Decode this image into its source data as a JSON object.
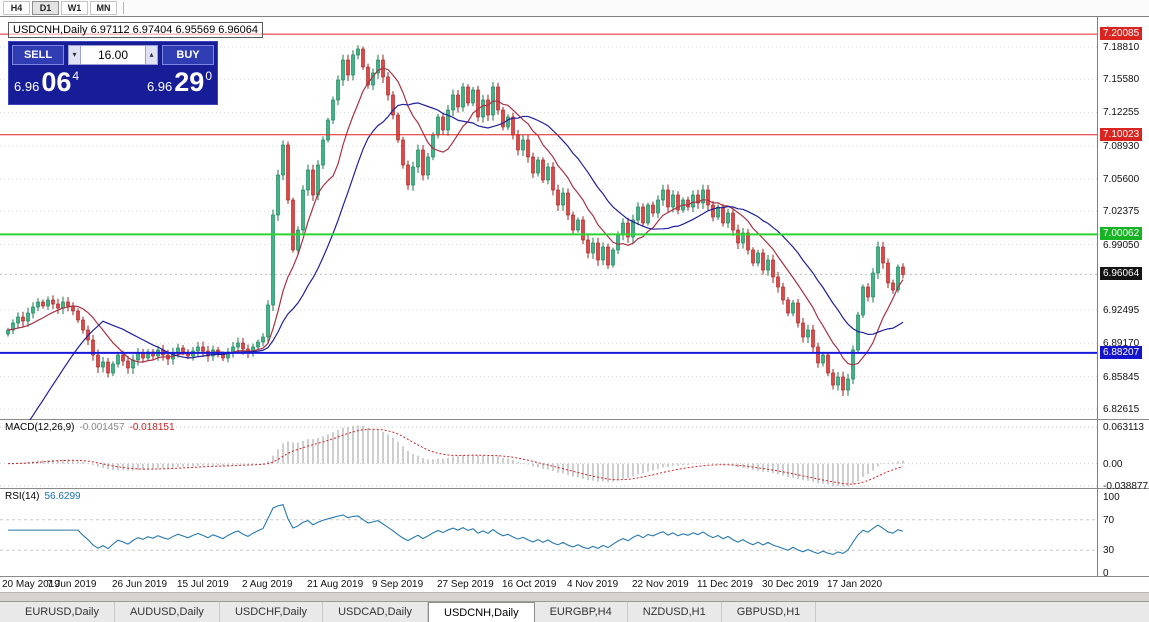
{
  "toolbar": {
    "timeframes": [
      "H4",
      "D1",
      "W1",
      "MN"
    ],
    "active": "D1"
  },
  "icons": {
    "triangle_up": "▴",
    "triangle_down": "▾"
  },
  "chart": {
    "title_line": "USDCNH,Daily 6.97112 6.97404 6.95569 6.96064"
  },
  "trade": {
    "sell_label": "SELL",
    "buy_label": "BUY",
    "volume": "16.00",
    "sell_price": {
      "head": "6.96",
      "pips": "06",
      "point": "4"
    },
    "buy_price": {
      "head": "6.96",
      "pips": "29",
      "point": "0"
    }
  },
  "tabs": {
    "active_index": 4,
    "items": [
      "EURUSD,Daily",
      "AUDUSD,Daily",
      "USDCHF,Daily",
      "USDCAD,Daily",
      "USDCNH,Daily",
      "EURGBP,H4",
      "NZDUSD,H1",
      "GBPUSD,H1"
    ]
  },
  "chart_data": {
    "type": "candlestick",
    "symbol": "USDCNH",
    "timeframe": "Daily",
    "y_range": {
      "min": 6.815,
      "max": 7.218
    },
    "y_ticks": [
      {
        "text": "7.18810",
        "value": 7.1881
      },
      {
        "text": "7.15580",
        "value": 7.1558
      },
      {
        "text": "7.12255",
        "value": 7.12255
      },
      {
        "text": "7.08930",
        "value": 7.0893
      },
      {
        "text": "7.05600",
        "value": 7.056
      },
      {
        "text": "7.02375",
        "value": 7.02375
      },
      {
        "text": "6.99050",
        "value": 6.9905
      },
      {
        "text": "6.92495",
        "value": 6.92495
      },
      {
        "text": "6.89170",
        "value": 6.8917
      },
      {
        "text": "6.85845",
        "value": 6.85845
      },
      {
        "text": "6.82615",
        "value": 6.82615
      }
    ],
    "level_lines": [
      {
        "text": "7.20085",
        "value": 7.20085,
        "color": "#e02020",
        "width": 1,
        "label_bg": "#d9241f"
      },
      {
        "text": "7.10023",
        "value": 7.10023,
        "color": "#e02020",
        "width": 1,
        "label_bg": "#d9241f"
      },
      {
        "text": "7.00062",
        "value": 7.00062,
        "color": "#2ed32e",
        "width": 2,
        "label_bg": "#17b324"
      },
      {
        "text": "6.88207",
        "value": 6.88207,
        "color": "#1818d8",
        "width": 2,
        "label_bg": "#1414cc"
      }
    ],
    "current_price": {
      "text": "6.96064",
      "value": 6.96064,
      "label_bg": "#141414"
    },
    "up_color": "#3eb489",
    "up_border": "#157a4d",
    "down_color": "#e04848",
    "down_border": "#a11f1f",
    "bars_per_label": 13,
    "x_labels": [
      "20 May 2019",
      "7 Jun 2019",
      "26 Jun 2019",
      "15 Jul 2019",
      "2 Aug 2019",
      "21 Aug 2019",
      "9 Sep 2019",
      "27 Sep 2019",
      "16 Oct 2019",
      "4 Nov 2019",
      "22 Nov 2019",
      "11 Dec 2019",
      "30 Dec 2019",
      "17 Jan 2020"
    ],
    "closes": [
      6.905,
      6.912,
      6.918,
      6.914,
      6.922,
      6.928,
      6.933,
      6.929,
      6.935,
      6.931,
      6.927,
      6.933,
      6.929,
      6.924,
      6.915,
      6.905,
      6.895,
      6.88,
      6.868,
      6.873,
      6.862,
      6.871,
      6.88,
      6.874,
      6.867,
      6.875,
      6.882,
      6.877,
      6.883,
      6.879,
      6.885,
      6.88,
      6.876,
      6.882,
      6.887,
      6.883,
      6.879,
      6.884,
      6.888,
      6.884,
      6.879,
      6.885,
      6.881,
      6.877,
      6.883,
      6.888,
      6.892,
      6.886,
      6.882,
      6.888,
      6.893,
      6.898,
      6.93,
      7.02,
      7.06,
      7.09,
      7.035,
      6.985,
      7.005,
      7.045,
      7.065,
      7.04,
      7.07,
      7.095,
      7.115,
      7.135,
      7.155,
      7.175,
      7.16,
      7.18,
      7.186,
      7.168,
      7.15,
      7.162,
      7.175,
      7.158,
      7.14,
      7.12,
      7.095,
      7.07,
      7.05,
      7.068,
      7.085,
      7.06,
      7.078,
      7.1,
      7.118,
      7.105,
      7.125,
      7.14,
      7.128,
      7.148,
      7.132,
      7.145,
      7.118,
      7.135,
      7.12,
      7.148,
      7.125,
      7.108,
      7.118,
      7.1,
      7.085,
      7.095,
      7.078,
      7.062,
      7.075,
      7.055,
      7.068,
      7.045,
      7.03,
      7.042,
      7.02,
      7.005,
      7.015,
      6.995,
      6.982,
      6.992,
      6.975,
      6.988,
      6.97,
      6.985,
      7.0,
      7.012,
      6.998,
      7.015,
      7.028,
      7.012,
      7.03,
      7.022,
      7.035,
      7.045,
      7.028,
      7.04,
      7.025,
      7.035,
      7.028,
      7.04,
      7.032,
      7.045,
      7.03,
      7.018,
      7.028,
      7.012,
      7.022,
      7.005,
      6.992,
      7.002,
      6.985,
      6.972,
      6.982,
      6.965,
      6.975,
      6.958,
      6.948,
      6.935,
      6.922,
      6.932,
      6.912,
      6.898,
      6.905,
      6.888,
      6.872,
      6.88,
      6.862,
      6.85,
      6.858,
      6.845,
      6.856,
      6.885,
      6.92,
      6.948,
      6.938,
      6.962,
      6.988,
      6.972,
      6.952,
      6.945,
      6.968,
      6.96064
    ],
    "moving_averages": [
      {
        "period": 10,
        "color": "#a83244",
        "seed": "first"
      },
      {
        "period": 20,
        "color": "#20209a",
        "seed": 6.778
      }
    ],
    "macd": {
      "name": "MACD(12,26,9)",
      "value_main": "-0.001457",
      "value_signal": "-0.018151",
      "fast": 12,
      "slow": 26,
      "signal": 9,
      "histogram_color": "#9d9d9d",
      "signal_color": "#cc2222",
      "y_range": {
        "min": -0.0438,
        "max": 0.0754
      },
      "y_ticks": [
        {
          "text": "0.063113",
          "value": 0.063113
        },
        {
          "text": "0.00",
          "value": 0
        },
        {
          "text": "-0.038877",
          "value": -0.038877
        }
      ]
    },
    "rsi": {
      "name": "RSI(14)",
      "value": "56.6299",
      "period": 14,
      "color": "#2779ae",
      "levels": [
        70,
        30
      ],
      "y_ticks": [
        {
          "text": "100",
          "value": 100
        },
        {
          "text": "70",
          "value": 70
        },
        {
          "text": "30",
          "value": 30
        },
        {
          "text": "0",
          "value": 0
        }
      ]
    }
  }
}
